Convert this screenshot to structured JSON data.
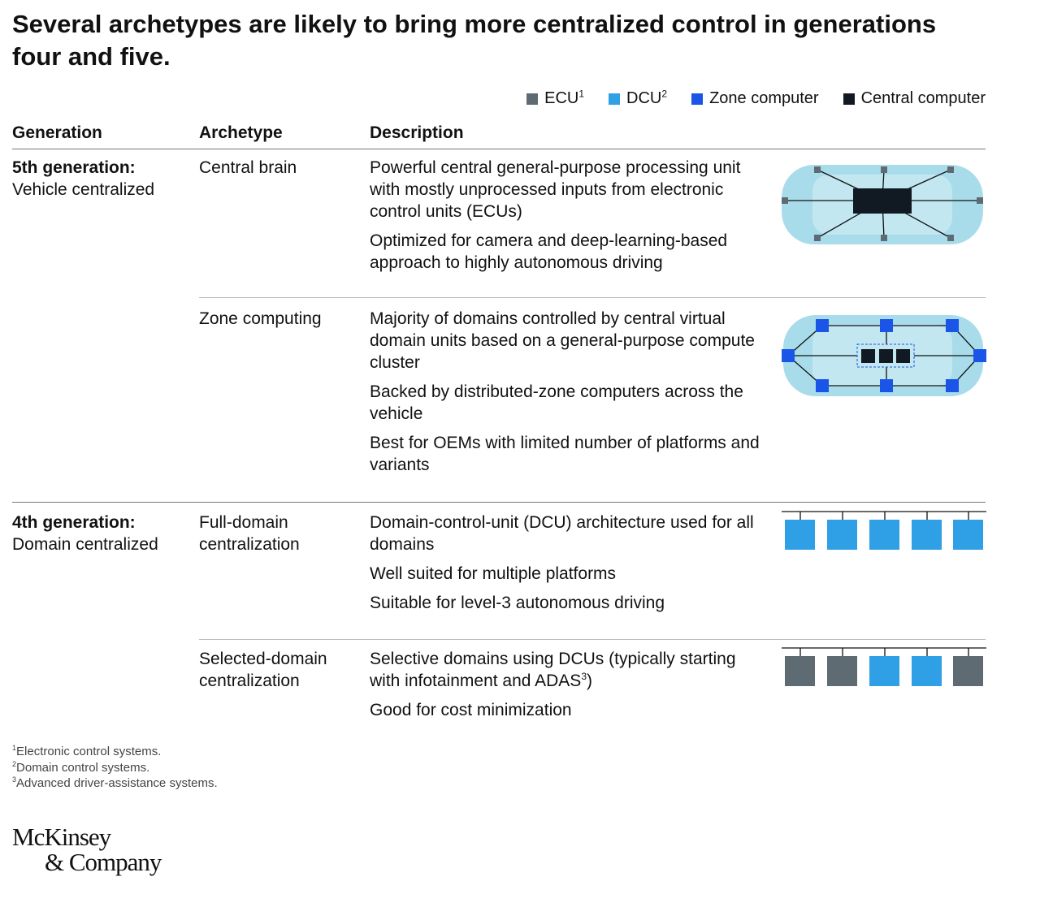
{
  "title": "Several archetypes are likely to bring more centralized control in generations four and five.",
  "legend": [
    {
      "label": "ECU",
      "sup": "1"
    },
    {
      "label": "DCU",
      "sup": "2"
    },
    {
      "label": "Zone computer"
    },
    {
      "label": "Central computer"
    }
  ],
  "table": {
    "headers": [
      "Generation",
      "Archetype",
      "Description"
    ],
    "groups": [
      {
        "generation": "5th generation:",
        "subtitle": "Vehicle centralized",
        "rows": [
          {
            "archetype": "Central brain",
            "description": [
              {
                "text": "Powerful central general-purpose processing unit with mostly unprocessed inputs from electronic control units (ECUs)"
              },
              {
                "text": "Optimized for camera and deep-learning-based approach to highly autonomous driving"
              }
            ]
          },
          {
            "archetype": "Zone computing",
            "description": [
              {
                "text": "Majority of domains controlled by central virtual domain units based on a general-purpose compute cluster"
              },
              {
                "text": "Backed by distributed-zone computers across the vehicle"
              },
              {
                "text": "Best for OEMs with limited number of platforms and variants"
              }
            ]
          }
        ]
      },
      {
        "generation": "4th generation:",
        "subtitle": "Domain centralized",
        "rows": [
          {
            "archetype": "Full-domain centralization",
            "description": [
              {
                "text": "Domain-control-unit (DCU) architecture used for all domains"
              },
              {
                "text": "Well suited for multiple platforms"
              },
              {
                "text": "Suitable for level-3 autonomous driving"
              }
            ]
          },
          {
            "archetype": "Selected-domain centralization",
            "description": [
              {
                "text": "Selective domains using DCUs (typically starting with infotainment and ADAS",
                "sup": "3",
                "after": ")"
              },
              {
                "text": "Good for cost minimization"
              }
            ]
          }
        ]
      }
    ]
  },
  "footnotes": [
    {
      "number": "1",
      "text": "Electronic control systems."
    },
    {
      "number": "2",
      "text": "Domain control systems."
    },
    {
      "number": "3",
      "text": "Advanced driver-assistance systems."
    }
  ],
  "logo": [
    "McKinsey",
    "& Company"
  ]
}
